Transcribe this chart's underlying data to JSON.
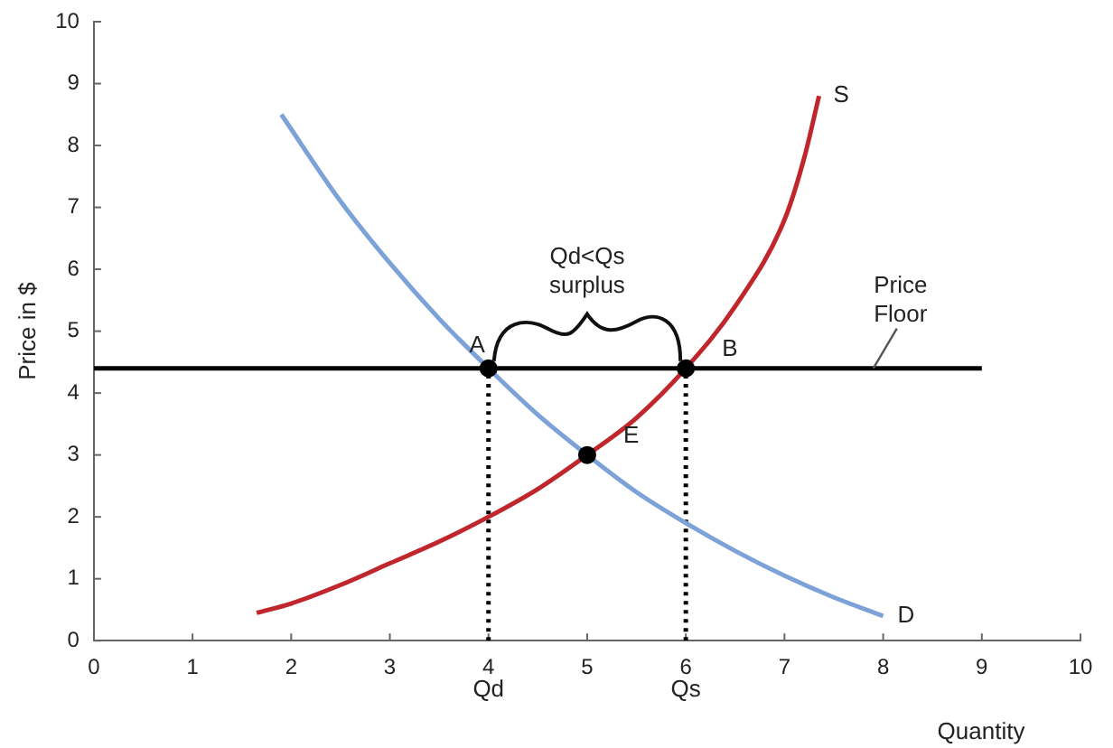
{
  "chart_data": {
    "type": "line",
    "xlabel": "Quantity",
    "ylabel": "Price in $",
    "xlim": [
      0,
      10
    ],
    "xticks": [
      0,
      1,
      2,
      3,
      4,
      5,
      6,
      7,
      8,
      9,
      10
    ],
    "ylim": [
      0,
      10
    ],
    "yticks": [
      0,
      1,
      2,
      3,
      4,
      5,
      6,
      7,
      8,
      9,
      10
    ],
    "grid": false,
    "legend": false,
    "marker": "none",
    "series": [
      {
        "name": "D",
        "color": "#7da2d8",
        "x": [
          1.9,
          2.5,
          3,
          3.5,
          4,
          4.5,
          5,
          5.5,
          6,
          6.5,
          7,
          7.5,
          8
        ],
        "values": [
          8.5,
          7.1,
          6.1,
          5.2,
          4.4,
          3.65,
          3.0,
          2.4,
          1.9,
          1.45,
          1.05,
          0.7,
          0.4
        ]
      },
      {
        "name": "S",
        "color": "#c0272d",
        "x": [
          1.65,
          2,
          2.5,
          3,
          3.5,
          4,
          4.5,
          5,
          5.5,
          6,
          6.5,
          7,
          7.2,
          7.35
        ],
        "values": [
          0.45,
          0.6,
          0.9,
          1.25,
          1.6,
          2.0,
          2.45,
          3.0,
          3.6,
          4.4,
          5.4,
          6.8,
          7.8,
          8.8
        ]
      },
      {
        "name": "Price Floor",
        "color": "#000000",
        "x": [
          0,
          9
        ],
        "values": [
          4.4,
          4.4
        ]
      },
      {
        "color": "#000000",
        "x": [
          4,
          4
        ],
        "values": [
          0,
          4.4
        ],
        "line_style": "dotted"
      },
      {
        "color": "#000000",
        "x": [
          6,
          6
        ],
        "values": [
          0,
          4.4
        ],
        "line_style": "dotted"
      },
      {
        "type": "scatter",
        "color": "#000000",
        "marker": "circle",
        "x": [
          4,
          6,
          5
        ],
        "values": [
          4.4,
          4.4,
          3.0
        ]
      }
    ],
    "annotations": [
      {
        "text": "A",
        "x": 4,
        "y": 4.4
      },
      {
        "text": "B",
        "x": 6,
        "y": 4.4
      },
      {
        "text": "E",
        "x": 5,
        "y": 3.0
      },
      {
        "text": "Qd",
        "x": 4,
        "y": 0
      },
      {
        "text": "Qs",
        "x": 6,
        "y": 0
      },
      "Qd<Qs",
      "surplus"
    ]
  }
}
